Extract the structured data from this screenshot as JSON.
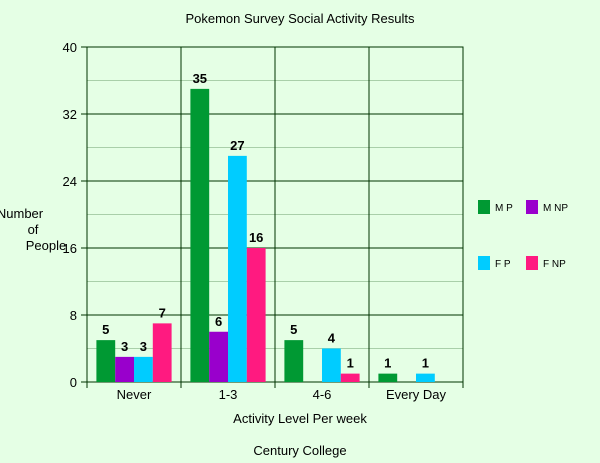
{
  "chart_data": {
    "type": "bar",
    "title": "Pokemon Survey Social Activity Results",
    "xlabel": "Activity Level Per week",
    "ylabel_lines": [
      "Number",
      "of",
      "People"
    ],
    "footer": "Century College",
    "categories": [
      "Never",
      "1-3",
      "4-6",
      "Every Day"
    ],
    "ylim": [
      0,
      40
    ],
    "yticks": [
      0,
      8,
      16,
      24,
      32,
      40
    ],
    "grid": true,
    "legend_position": "right",
    "series": [
      {
        "name": "M P",
        "color": "#009933",
        "values": [
          5,
          35,
          5,
          1
        ]
      },
      {
        "name": "M NP",
        "color": "#9900cc",
        "values": [
          3,
          6,
          null,
          null
        ]
      },
      {
        "name": "F P",
        "color": "#00ccff",
        "values": [
          3,
          27,
          4,
          1
        ]
      },
      {
        "name": "F NP",
        "color": "#ff1a80",
        "values": [
          7,
          16,
          1,
          null
        ]
      }
    ]
  }
}
